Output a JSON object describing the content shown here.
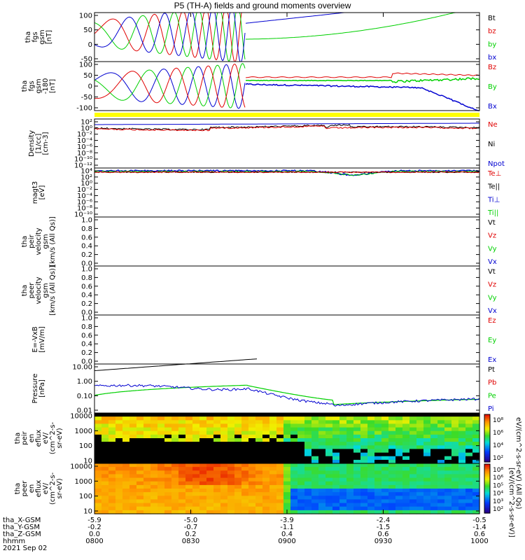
{
  "title": "P5 (TH-A) fields and ground moments overview",
  "colors": {
    "black": "#000000",
    "red": "#e00000",
    "green": "#00d000",
    "blue": "#0000d0"
  },
  "chart_data": [
    {
      "type": "line",
      "id": "fgs",
      "ylabel": [
        "tha",
        "fgs",
        "gsm",
        "[nT]"
      ],
      "ylim": [
        -75,
        100
      ],
      "yticks": [
        "100",
        "50",
        "0",
        "-50"
      ],
      "legend": [
        {
          "label": "Bt",
          "color": "#000000"
        },
        {
          "label": "bz",
          "color": "#e00000"
        },
        {
          "label": "by",
          "color": "#00d000"
        },
        {
          "label": "bx",
          "color": "#0000d0"
        }
      ]
    },
    {
      "type": "line",
      "id": "fgs_deg",
      "ylabel": [
        "tha",
        "fgs",
        "gsm",
        "-180",
        "[nT]"
      ],
      "ylim": [
        -120,
        100
      ],
      "yticks": [
        "100",
        "50",
        "0",
        "-50",
        "-100"
      ],
      "legend": [
        {
          "label": "Bz",
          "color": "#e00000"
        },
        {
          "label": "By",
          "color": "#00d000"
        },
        {
          "label": "Bx",
          "color": "#0000d0"
        }
      ]
    },
    {
      "type": "line",
      "id": "density",
      "ylabel": [
        "Density",
        "[1/cc]",
        "[cm-3]"
      ],
      "yticks": [
        "10²",
        "10⁰",
        "10⁻²",
        "10⁻⁴",
        "10⁻⁶",
        "10⁻⁸",
        "10⁻¹⁰",
        "10⁻¹²"
      ],
      "legend": [
        {
          "label": "Ne",
          "color": "#e00000"
        },
        {
          "label": "Ni",
          "color": "#000000"
        },
        {
          "label": "Npot",
          "color": "#0000d0"
        }
      ]
    },
    {
      "type": "line",
      "id": "temp",
      "ylabel": [
        "magt3",
        "[eV]"
      ],
      "yticks": [
        "10⁴",
        "10²",
        "10⁰",
        "10⁻²",
        "10⁻⁴",
        "10⁻⁶",
        "10⁻⁸",
        "10⁻¹⁰"
      ],
      "legend": [
        {
          "label": "Te⊥",
          "color": "#e00000"
        },
        {
          "label": "Te||",
          "color": "#000000"
        },
        {
          "label": "Ti⊥",
          "color": "#0000d0"
        },
        {
          "label": "Ti||",
          "color": "#00d000"
        }
      ]
    },
    {
      "type": "line",
      "id": "peir_v",
      "ylabel": [
        "tha",
        "peir",
        "velocity",
        "gsm",
        "[km/s (All Qs)]"
      ],
      "yticks": [
        "1.0",
        "0.8",
        "0.6",
        "0.4",
        "0.2",
        "0.0"
      ],
      "legend": [
        {
          "label": "Vt",
          "color": "#000000"
        },
        {
          "label": "Vz",
          "color": "#e00000"
        },
        {
          "label": "Vy",
          "color": "#00d000"
        },
        {
          "label": "Vx",
          "color": "#0000d0"
        }
      ]
    },
    {
      "type": "line",
      "id": "peer_v",
      "ylabel": [
        "tha",
        "peer",
        "velocity",
        "gsm",
        "[km/s (All Qs)]"
      ],
      "yticks": [
        "1.0",
        "0.8",
        "0.6",
        "0.4",
        "0.2",
        "0.0"
      ],
      "legend": [
        {
          "label": "Vt",
          "color": "#000000"
        },
        {
          "label": "Vz",
          "color": "#e00000"
        },
        {
          "label": "Vy",
          "color": "#00d000"
        },
        {
          "label": "Vx",
          "color": "#0000d0"
        }
      ]
    },
    {
      "type": "line",
      "id": "efield",
      "ylabel": [
        "E=-VxB",
        "[mV/m]"
      ],
      "yticks": [
        "1.0",
        "0.8",
        "0.6",
        "0.4",
        "0.2",
        "0.0"
      ],
      "legend": [
        {
          "label": "Ez",
          "color": "#e00000"
        },
        {
          "label": "Ey",
          "color": "#00d000"
        },
        {
          "label": "Ex",
          "color": "#0000d0"
        }
      ]
    },
    {
      "type": "line",
      "id": "pressure",
      "ylabel": [
        "Pressure",
        "[nPa]"
      ],
      "yticks": [
        "10.00",
        "1.00",
        "0.10",
        "0.01"
      ],
      "legend": [
        {
          "label": "Pt",
          "color": "#000000"
        },
        {
          "label": "Pb",
          "color": "#e00000"
        },
        {
          "label": "Pe",
          "color": "#00d000"
        },
        {
          "label": "Pi",
          "color": "#0000d0"
        }
      ]
    },
    {
      "type": "heatmap",
      "id": "peir_en",
      "ylabel": [
        "tha",
        "peir",
        "en",
        "eflux",
        "eV/",
        "(cm^2-s-",
        "sr-eV)"
      ],
      "yticks": [
        "10000",
        "1000",
        "100",
        "10"
      ]
    },
    {
      "type": "heatmap",
      "id": "peer_en",
      "ylabel": [
        "tha",
        "peer",
        "en",
        "eflux",
        "eV/",
        "(cm^2-s-",
        "sr-eV)"
      ],
      "yticks": [
        "10000",
        "1000",
        "100",
        "10"
      ]
    }
  ],
  "colorbars": [
    {
      "ticks": [
        "10⁸",
        "10⁶",
        "10⁴",
        "10²"
      ],
      "label": "eV/(cm^2-s-sr-eV) (All Qs)"
    },
    {
      "ticks": [
        "10⁸",
        "10⁶",
        "10⁵",
        "10⁴",
        "10³",
        "10²"
      ],
      "label": "[eV/(cm^2-s-sr-eV)]"
    }
  ],
  "x_axis": {
    "rows": [
      {
        "label": "tha_X-GSM",
        "values": [
          "-5.9",
          "-5.0",
          "-3.9",
          "-2.4",
          "-0.5"
        ]
      },
      {
        "label": "tha_Y-GSM",
        "values": [
          "-0.2",
          "-0.7",
          "-1.1",
          "-1.5",
          "-1.4"
        ]
      },
      {
        "label": "tha_Z-GSM",
        "values": [
          "0.0",
          "0.2",
          "0.4",
          "0.6",
          "0.6"
        ]
      },
      {
        "label": "hhmm",
        "values": [
          "0800",
          "0830",
          "0900",
          "0930",
          "1000"
        ]
      }
    ],
    "date": "2021 Sep 02"
  }
}
